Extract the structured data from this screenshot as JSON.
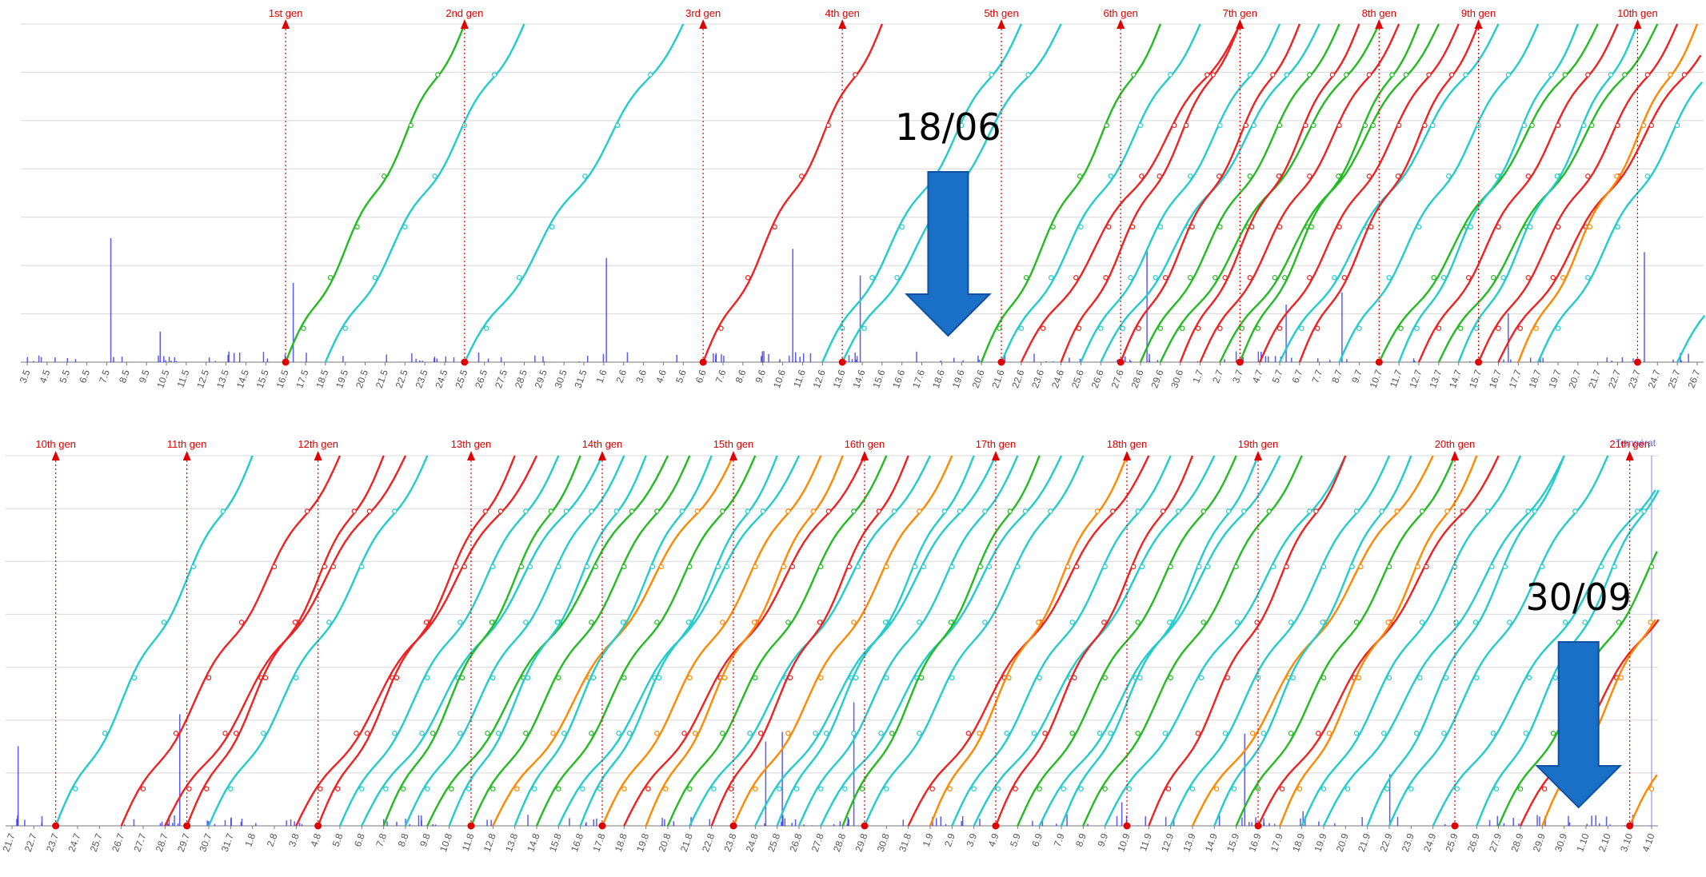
{
  "chart_data": [
    {
      "type": "line",
      "panel": "top",
      "x_range": [
        "3.5",
        "26.7"
      ],
      "x_ticks": [
        "3.5",
        "4.5",
        "5.5",
        "6.5",
        "7.5",
        "8.5",
        "9.5",
        "10.5",
        "11.5",
        "12.5",
        "13.5",
        "14.5",
        "15.5",
        "16.5",
        "17.5",
        "18.5",
        "19.5",
        "20.5",
        "21.5",
        "22.5",
        "23.5",
        "24.5",
        "25.5",
        "26.5",
        "27.5",
        "28.5",
        "29.5",
        "30.5",
        "31.5",
        "1.6",
        "2.6",
        "3.6",
        "4.6",
        "5.6",
        "6.6",
        "7.6",
        "8.6",
        "9.6",
        "10.6",
        "11.6",
        "12.6",
        "13.6",
        "14.6",
        "15.6",
        "16.6",
        "17.6",
        "18.6",
        "19.6",
        "20.6",
        "21.6",
        "22.6",
        "23.6",
        "24.6",
        "25.6",
        "26.6",
        "27.6",
        "28.6",
        "29.6",
        "30.6",
        "1.7",
        "2.7",
        "3.7",
        "4.7",
        "5.7",
        "6.7",
        "7.7",
        "8.7",
        "9.7",
        "10.7",
        "11.7",
        "12.7",
        "13.7",
        "14.7",
        "15.7",
        "16.7",
        "17.7",
        "18.7",
        "19.7",
        "20.7",
        "21.7",
        "22.7",
        "23.7",
        "24.7",
        "25.7",
        "26.7"
      ],
      "generations": [
        {
          "label": "1st gen",
          "date": "16.5"
        },
        {
          "label": "2nd gen",
          "date": "25.5"
        },
        {
          "label": "3rd gen",
          "date": "6.6"
        },
        {
          "label": "4th gen",
          "date": "13.6"
        },
        {
          "label": "5th gen",
          "date": "21.6"
        },
        {
          "label": "6th gen",
          "date": "27.6"
        },
        {
          "label": "7th gen",
          "date": "3.7"
        },
        {
          "label": "8th gen",
          "date": "10.7"
        },
        {
          "label": "9th gen",
          "date": "15.7"
        },
        {
          "label": "10th gen",
          "date": "23.7"
        }
      ],
      "annotation": {
        "text": "18/06",
        "date": "18.6"
      },
      "series_colors": {
        "green": "#22bb22",
        "cyan": "#22cccc",
        "red": "#ee2222",
        "orange": "#ff8800"
      },
      "bars_color": "#3333ee",
      "curve_starts": [
        {
          "date": "16.5",
          "color": "green"
        },
        {
          "date": "18.5",
          "color": "cyan"
        },
        {
          "date": "25.5",
          "color": "cyan"
        },
        {
          "date": "6.6",
          "color": "red"
        },
        {
          "date": "12.6",
          "color": "cyan"
        },
        {
          "date": "13.6",
          "color": "cyan"
        },
        {
          "date": "20.6",
          "color": "green"
        },
        {
          "date": "21.6",
          "color": "cyan"
        },
        {
          "date": "22.6",
          "color": "red"
        },
        {
          "date": "24.6",
          "color": "red"
        },
        {
          "date": "25.6",
          "color": "cyan"
        },
        {
          "date": "26.6",
          "color": "cyan"
        },
        {
          "date": "27.6",
          "color": "red"
        },
        {
          "date": "28.6",
          "color": "green"
        },
        {
          "date": "29.6",
          "color": "green"
        },
        {
          "date": "30.6",
          "color": "red"
        },
        {
          "date": "1.7",
          "color": "red"
        },
        {
          "date": "2.7",
          "color": "green"
        },
        {
          "date": "3.7",
          "color": "green"
        },
        {
          "date": "4.7",
          "color": "red"
        },
        {
          "date": "5.7",
          "color": "cyan"
        },
        {
          "date": "6.7",
          "color": "red"
        },
        {
          "date": "8.7",
          "color": "cyan"
        },
        {
          "date": "10.7",
          "color": "green"
        },
        {
          "date": "11.7",
          "color": "cyan"
        },
        {
          "date": "12.7",
          "color": "red"
        },
        {
          "date": "13.7",
          "color": "green"
        },
        {
          "date": "14.7",
          "color": "cyan"
        },
        {
          "date": "15.7",
          "color": "red"
        },
        {
          "date": "16.7",
          "color": "red"
        },
        {
          "date": "17.7",
          "color": "orange"
        },
        {
          "date": "18.7",
          "color": "cyan"
        },
        {
          "date": "25.7",
          "color": "cyan"
        }
      ]
    },
    {
      "type": "line",
      "panel": "bottom",
      "x_range": [
        "21.7",
        "4.10"
      ],
      "x_ticks": [
        "21.7",
        "22.7",
        "23.7",
        "24.7",
        "25.7",
        "26.7",
        "27.7",
        "28.7",
        "29.7",
        "30.7",
        "31.7",
        "1.8",
        "2.8",
        "3.8",
        "4.8",
        "5.8",
        "6.8",
        "7.8",
        "8.8",
        "9.8",
        "10.8",
        "11.8",
        "12.8",
        "13.8",
        "14.8",
        "15.8",
        "16.8",
        "17.8",
        "18.8",
        "19.8",
        "20.8",
        "21.8",
        "22.8",
        "23.8",
        "24.8",
        "25.8",
        "26.8",
        "27.8",
        "28.8",
        "29.8",
        "30.8",
        "31.8",
        "1.9",
        "2.9",
        "3.9",
        "4.9",
        "5.9",
        "6.9",
        "7.9",
        "8.9",
        "9.9",
        "10.9",
        "11.9",
        "12.9",
        "13.9",
        "14.9",
        "15.9",
        "16.9",
        "17.9",
        "18.9",
        "19.9",
        "20.9",
        "21.9",
        "22.9",
        "23.9",
        "24.9",
        "25.9",
        "26.9",
        "27.9",
        "28.9",
        "29.9",
        "30.9",
        "1.10",
        "2.10",
        "3.10",
        "4.10"
      ],
      "generations": [
        {
          "label": "10th gen",
          "date": "23.7"
        },
        {
          "label": "11th gen",
          "date": "29.7"
        },
        {
          "label": "12th gen",
          "date": "4.8"
        },
        {
          "label": "13th gen",
          "date": "11.8"
        },
        {
          "label": "14th gen",
          "date": "17.8"
        },
        {
          "label": "15th gen",
          "date": "23.8"
        },
        {
          "label": "16th gen",
          "date": "29.8"
        },
        {
          "label": "17th gen",
          "date": "4.9"
        },
        {
          "label": "18th gen",
          "date": "10.9"
        },
        {
          "label": "19th gen",
          "date": "16.9"
        },
        {
          "label": "20th gen",
          "date": "25.9"
        },
        {
          "label": "21th gen",
          "date": "3.10"
        }
      ],
      "annotation": {
        "text": "30/09",
        "date": "30.9"
      },
      "legend_stub": "Températ",
      "series_colors": {
        "green": "#22bb22",
        "cyan": "#22cccc",
        "red": "#ee2222",
        "orange": "#ff8800"
      },
      "bars_color": "#3333ee",
      "curve_starts": [
        {
          "date": "23.7",
          "color": "cyan"
        },
        {
          "date": "26.7",
          "color": "red"
        },
        {
          "date": "28.7",
          "color": "red"
        },
        {
          "date": "29.7",
          "color": "red"
        },
        {
          "date": "30.7",
          "color": "cyan"
        },
        {
          "date": "3.8",
          "color": "red"
        },
        {
          "date": "4.8",
          "color": "red"
        },
        {
          "date": "5.8",
          "color": "cyan"
        },
        {
          "date": "6.8",
          "color": "cyan"
        },
        {
          "date": "7.8",
          "color": "green"
        },
        {
          "date": "8.8",
          "color": "cyan"
        },
        {
          "date": "9.8",
          "color": "green"
        },
        {
          "date": "10.8",
          "color": "cyan"
        },
        {
          "date": "11.8",
          "color": "green"
        },
        {
          "date": "12.8",
          "color": "orange"
        },
        {
          "date": "13.8",
          "color": "cyan"
        },
        {
          "date": "14.8",
          "color": "green"
        },
        {
          "date": "15.8",
          "color": "cyan"
        },
        {
          "date": "16.8",
          "color": "cyan"
        },
        {
          "date": "17.8",
          "color": "orange"
        },
        {
          "date": "18.8",
          "color": "red"
        },
        {
          "date": "19.8",
          "color": "orange"
        },
        {
          "date": "20.8",
          "color": "green"
        },
        {
          "date": "21.8",
          "color": "cyan"
        },
        {
          "date": "22.8",
          "color": "red"
        },
        {
          "date": "23.8",
          "color": "orange"
        },
        {
          "date": "24.8",
          "color": "cyan"
        },
        {
          "date": "25.8",
          "color": "cyan"
        },
        {
          "date": "26.8",
          "color": "cyan"
        },
        {
          "date": "27.8",
          "color": "cyan"
        },
        {
          "date": "28.8",
          "color": "green"
        },
        {
          "date": "29.8",
          "color": "cyan"
        },
        {
          "date": "31.8",
          "color": "red"
        },
        {
          "date": "1.9",
          "color": "orange"
        },
        {
          "date": "2.9",
          "color": "cyan"
        },
        {
          "date": "3.9",
          "color": "cyan"
        },
        {
          "date": "4.9",
          "color": "red"
        },
        {
          "date": "5.9",
          "color": "green"
        },
        {
          "date": "6.9",
          "color": "cyan"
        },
        {
          "date": "7.9",
          "color": "cyan"
        },
        {
          "date": "8.9",
          "color": "green"
        },
        {
          "date": "9.9",
          "color": "cyan"
        },
        {
          "date": "11.9",
          "color": "red"
        },
        {
          "date": "12.9",
          "color": "cyan"
        },
        {
          "date": "13.9",
          "color": "orange"
        },
        {
          "date": "14.9",
          "color": "cyan"
        },
        {
          "date": "15.9",
          "color": "green"
        },
        {
          "date": "16.9",
          "color": "red"
        },
        {
          "date": "17.9",
          "color": "orange"
        },
        {
          "date": "18.9",
          "color": "cyan"
        },
        {
          "date": "19.9",
          "color": "cyan"
        },
        {
          "date": "21.9",
          "color": "cyan"
        },
        {
          "date": "22.9",
          "color": "cyan"
        },
        {
          "date": "24.9",
          "color": "cyan"
        },
        {
          "date": "26.9",
          "color": "cyan"
        },
        {
          "date": "27.9",
          "color": "green"
        },
        {
          "date": "28.9",
          "color": "red"
        },
        {
          "date": "29.9",
          "color": "orange"
        },
        {
          "date": "3.10",
          "color": "orange"
        }
      ]
    }
  ]
}
